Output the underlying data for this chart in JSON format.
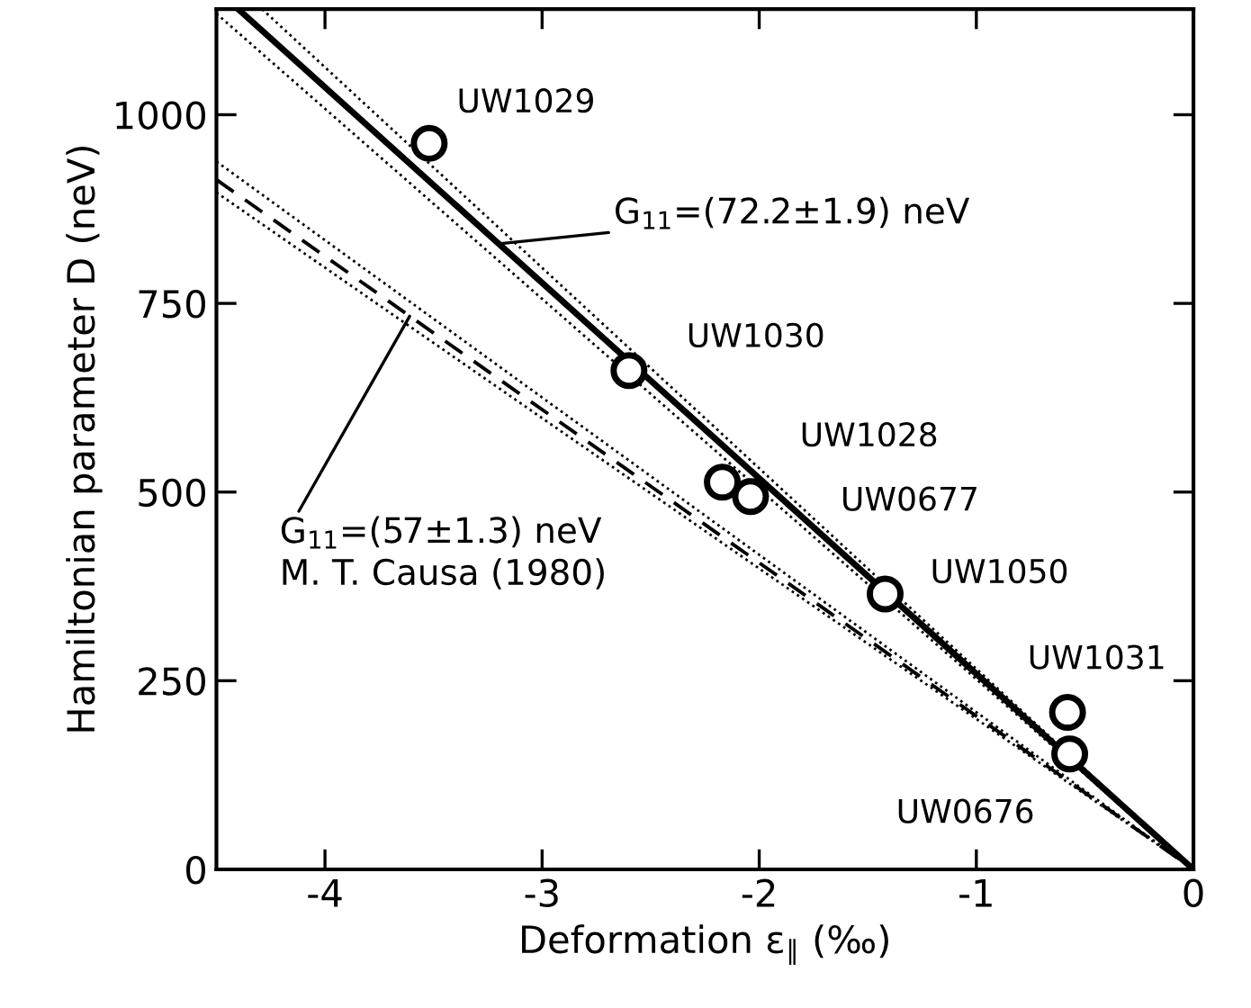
{
  "chart_data": {
    "type": "scatter",
    "xlabel": "Deformation ε$_{∥}$ (‰)",
    "ylabel": "Hamiltonian parameter D (neV)",
    "xlim": [
      -4.5,
      0
    ],
    "ylim": [
      0,
      1140
    ],
    "xticks": [
      -4,
      -3,
      -2,
      -1,
      0
    ],
    "yticks": [
      0,
      250,
      500,
      750,
      1000
    ],
    "grid": false,
    "legend": false,
    "marker": "circle",
    "series": [
      {
        "type": "line",
        "color": "#000000",
        "line_style": "dotted",
        "marker": "none",
        "x": [
          -4.29,
          0
        ],
        "values": [
          1140,
          0
        ]
      },
      {
        "type": "line",
        "color": "#000000",
        "line_style": "dotted",
        "marker": "none",
        "x": [
          -4.5,
          0
        ],
        "values": [
          1134,
          0
        ]
      },
      {
        "type": "line",
        "color": "#000000",
        "line_style": "dotted",
        "marker": "none",
        "x": [
          -4.5,
          0
        ],
        "values": [
          938,
          0
        ]
      },
      {
        "type": "line",
        "color": "#000000",
        "line_style": "dotted",
        "marker": "none",
        "x": [
          -4.5,
          0
        ],
        "values": [
          897,
          0
        ]
      },
      {
        "type": "line",
        "color": "#000000",
        "line_style": "dashed",
        "marker": "none",
        "x": [
          -4.5,
          0
        ],
        "values": [
          914,
          0
        ]
      },
      {
        "type": "line",
        "color": "#000000",
        "line_style": "solid",
        "marker": "none",
        "x": [
          -4.4,
          0
        ],
        "values": [
          1140,
          0
        ]
      },
      {
        "color": "#000000",
        "x": [
          -3.52,
          -2.6,
          -2.17,
          -2.04,
          -1.42,
          -0.58,
          -0.57
        ],
        "values": [
          962,
          661,
          513,
          494,
          365,
          208,
          153
        ]
      }
    ],
    "annotations": [
      {
        "text": "UW1029",
        "x": -3.52,
        "y": 962
      },
      {
        "text": "UW1030",
        "x": -2.6,
        "y": 661
      },
      {
        "text": "UW1028",
        "x": -2.17,
        "y": 513
      },
      {
        "text": "UW0677",
        "x": -2.04,
        "y": 494
      },
      {
        "text": "UW1050",
        "x": -1.42,
        "y": 365
      },
      {
        "text": "UW1031",
        "x": -0.58,
        "y": 208
      },
      {
        "text": "UW0676",
        "x": -0.57,
        "y": 153
      },
      {
        "text": "G$_{11}$=(72.2±1.9) neV",
        "x": -3.2,
        "y": 829
      },
      {
        "text": "G$_{11}$=(57±1.3) neV\nM. T. Causa (1980)",
        "x": -3.61,
        "y": 733
      }
    ]
  }
}
